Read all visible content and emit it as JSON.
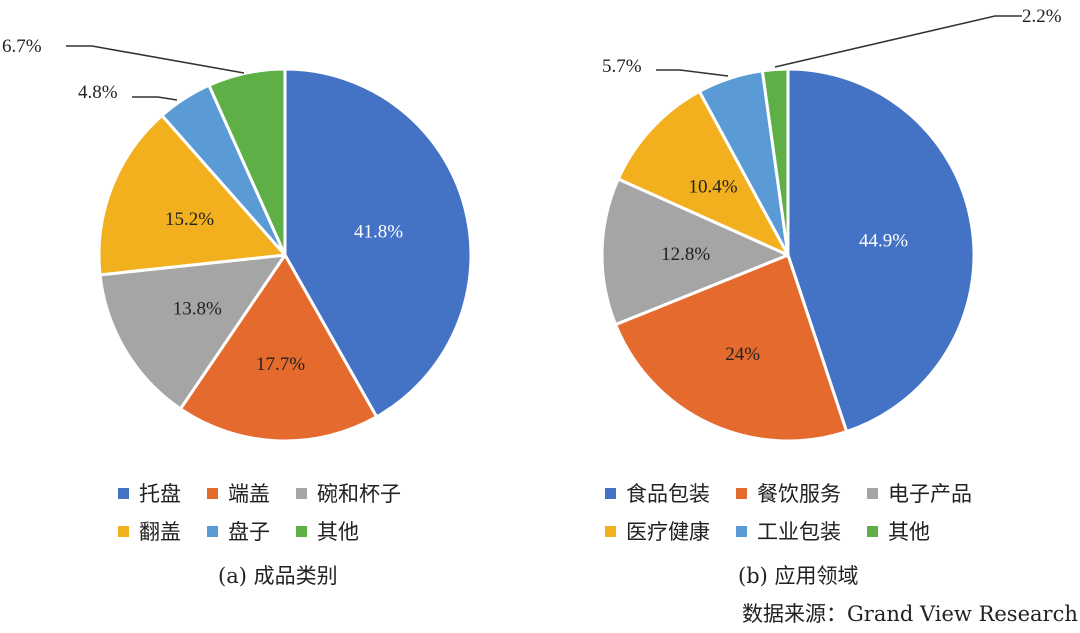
{
  "colors": {
    "blue": "#4472C4",
    "orange": "#ED7D31",
    "gray": "#A5A5A5",
    "yellow": "#FFC000",
    "lightblue": "#5B9BD5",
    "green": "#70AD47"
  },
  "chart_data": [
    {
      "type": "pie",
      "caption": "(a) 成品类别",
      "slices": [
        {
          "label": "托盘",
          "value": 41.8,
          "text": "41.8%",
          "color": "#4472C4"
        },
        {
          "label": "端盖",
          "value": 17.7,
          "text": "17.7%",
          "color": "#E46A2E"
        },
        {
          "label": "碗和杯子",
          "value": 13.8,
          "text": "13.8%",
          "color": "#A5A5A5"
        },
        {
          "label": "翻盖",
          "value": 15.2,
          "text": "15.2%",
          "color": "#F2B01E"
        },
        {
          "label": "盘子",
          "value": 4.8,
          "text": "4.8%",
          "color": "#5B9BD5"
        },
        {
          "label": "其他",
          "value": 6.7,
          "text": "6.7%",
          "color": "#5FAF47"
        }
      ],
      "legend": [
        "托盘",
        "端盖",
        "碗和杯子",
        "翻盖",
        "盘子",
        "其他"
      ]
    },
    {
      "type": "pie",
      "caption": "(b) 应用领域",
      "slices": [
        {
          "label": "食品包装",
          "value": 44.9,
          "text": "44.9%",
          "color": "#4472C4"
        },
        {
          "label": "餐饮服务",
          "value": 24,
          "text": "24%",
          "color": "#E46A2E"
        },
        {
          "label": "电子产品",
          "value": 12.8,
          "text": "12.8%",
          "color": "#A5A5A5"
        },
        {
          "label": "医疗健康",
          "value": 10.4,
          "text": "10.4%",
          "color": "#F2B01E"
        },
        {
          "label": "工业包装",
          "value": 5.7,
          "text": "5.7%",
          "color": "#5B9BD5"
        },
        {
          "label": "其他",
          "value": 2.2,
          "text": "2.2%",
          "color": "#5FAF47"
        }
      ],
      "legend": [
        "食品包装",
        "餐饮服务",
        "电子产品",
        "医疗健康",
        "工业包装",
        "其他"
      ]
    }
  ],
  "source": "数据来源：Grand View Research"
}
